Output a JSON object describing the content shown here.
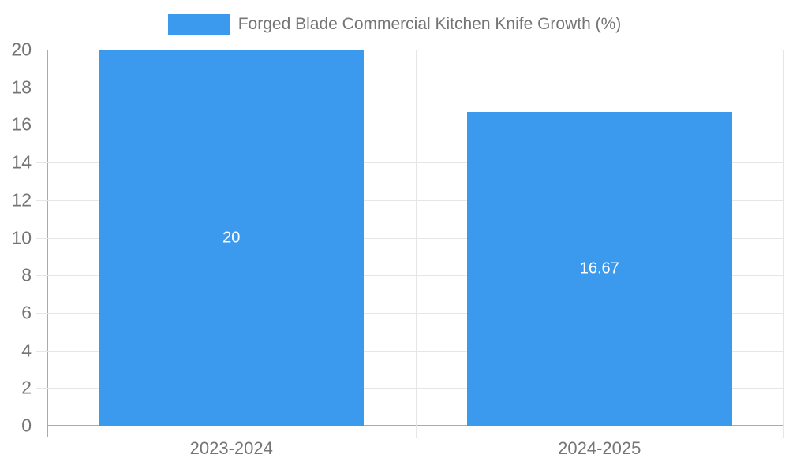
{
  "chart_data": {
    "type": "bar",
    "title": "Forged Blade Commercial Kitchen Knife Growth (%)",
    "categories": [
      "2023-2024",
      "2024-2025"
    ],
    "series": [
      {
        "name": "Forged Blade Commercial Kitchen Knife Growth (%)",
        "values": [
          20,
          16.67
        ],
        "value_labels": [
          "20",
          "16.67"
        ]
      }
    ],
    "xlabel": "",
    "ylabel": "",
    "ylim": [
      0,
      20
    ],
    "yticks": [
      0,
      2,
      4,
      6,
      8,
      10,
      12,
      14,
      16,
      18,
      20
    ],
    "grid": true,
    "legend_position": "top-center",
    "colors": {
      "bar": "#3B99EE",
      "value_label": "#FFFFFF",
      "axis_text": "#757575",
      "gridline": "#E6E6E6",
      "axis_line": "#ABABAB"
    },
    "bar_width_fraction": 0.72
  }
}
